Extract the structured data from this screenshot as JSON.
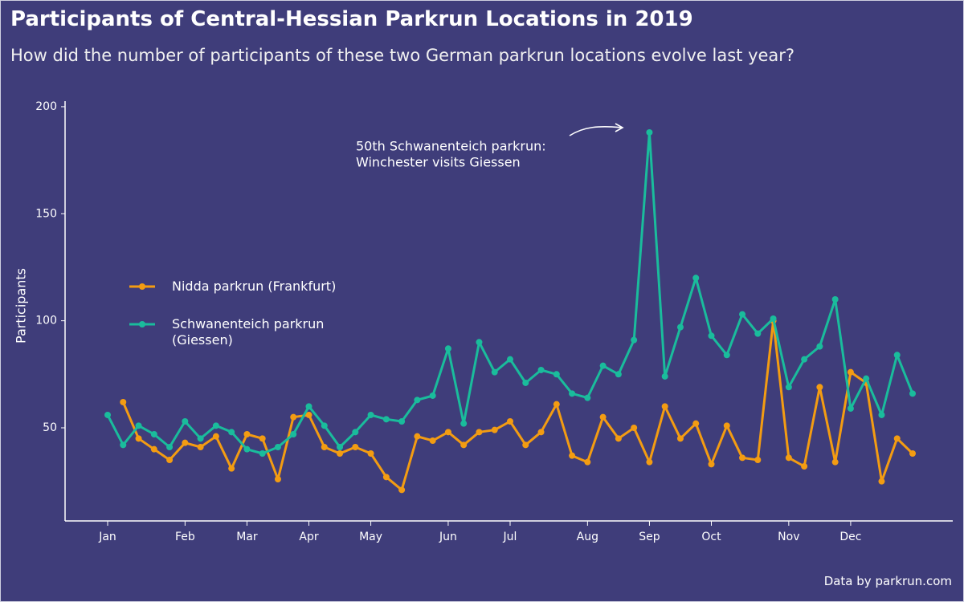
{
  "chart_data": {
    "type": "line",
    "title": "Participants of Central-Hessian Parkrun Locations in 2019",
    "subtitle": "How did the number of participants of these two German parkrun locations evolve last year?",
    "y_label": "Participants",
    "caption": "Data by parkrun.com",
    "annotation": [
      "50th Schwanenteich parkrun:",
      "Winchester visits Giessen"
    ],
    "categories": [
      "Jan",
      null,
      null,
      null,
      null,
      "Feb",
      null,
      null,
      null,
      "Mar",
      null,
      null,
      null,
      "Apr",
      null,
      null,
      null,
      "May",
      null,
      null,
      null,
      null,
      "Jun",
      null,
      null,
      null,
      "Jul",
      null,
      null,
      null,
      null,
      "Aug",
      null,
      null,
      null,
      "Sep",
      null,
      null,
      null,
      "Oct",
      null,
      null,
      null,
      null,
      "Nov",
      null,
      null,
      null,
      "Dec",
      null,
      null,
      null,
      null
    ],
    "series": [
      {
        "name": "Nidda parkrun (Frankfurt)",
        "color": "#f39c12",
        "values": [
          null,
          62,
          45,
          40,
          35,
          43,
          41,
          46,
          31,
          47,
          45,
          26,
          55,
          56,
          41,
          38,
          41,
          38,
          27,
          21,
          46,
          44,
          48,
          42,
          48,
          49,
          53,
          42,
          48,
          61,
          37,
          34,
          55,
          45,
          50,
          34,
          60,
          45,
          52,
          33,
          51,
          36,
          35,
          100,
          36,
          32,
          69,
          34,
          76,
          71,
          25,
          45,
          38
        ]
      },
      {
        "name": "Schwanenteich parkrun (Giessen)",
        "color": "#1abc9c",
        "values": [
          56,
          42,
          51,
          47,
          41,
          53,
          45,
          51,
          48,
          40,
          38,
          41,
          47,
          60,
          51,
          41,
          48,
          56,
          54,
          53,
          63,
          65,
          87,
          52,
          90,
          76,
          82,
          71,
          77,
          75,
          66,
          64,
          79,
          75,
          91,
          188,
          74,
          97,
          120,
          93,
          84,
          103,
          94,
          101,
          69,
          82,
          88,
          110,
          59,
          73,
          56,
          84,
          66
        ]
      }
    ],
    "ylim": [
      6.5,
      202.6
    ],
    "yticks": [
      50,
      100,
      150,
      200
    ],
    "grid": false
  }
}
